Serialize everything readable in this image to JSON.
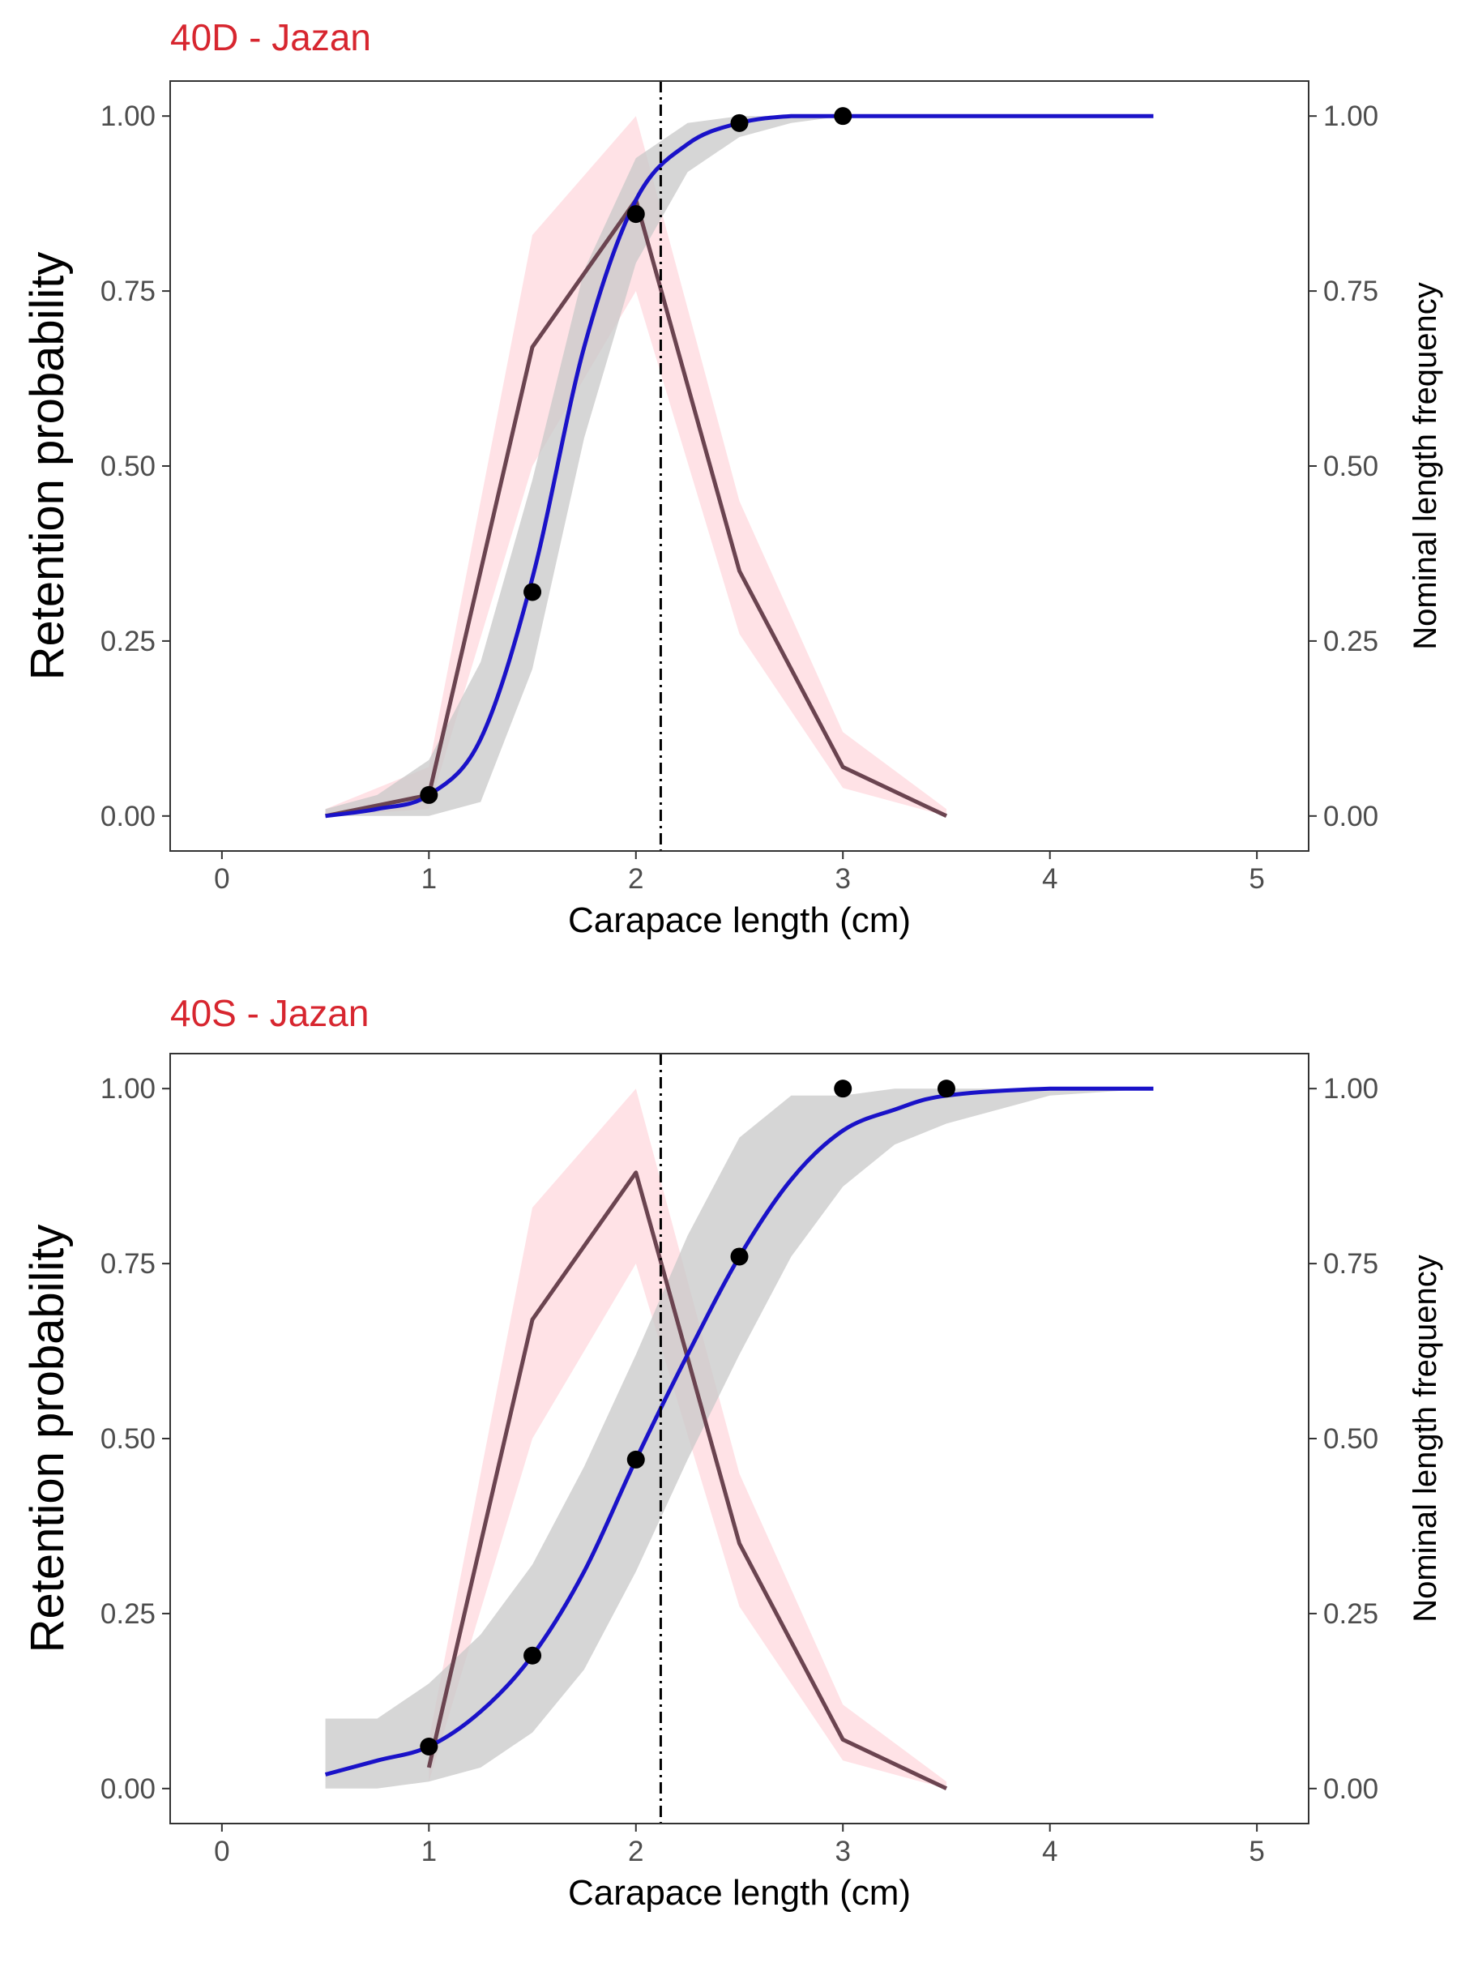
{
  "chart_data": [
    {
      "type": "line",
      "title": "40D - Jazan",
      "xlabel": "Carapace length (cm)",
      "ylabel": "Retention probability",
      "y2label": "Nominal length frequency",
      "xlim": [
        -0.25,
        5.25
      ],
      "ylim": [
        -0.05,
        1.05
      ],
      "xticks": [
        "0",
        "1",
        "2",
        "3",
        "4",
        "5"
      ],
      "yticks": [
        "0.00",
        "0.25",
        "0.50",
        "0.75",
        "1.00"
      ],
      "y2ticks": [
        "0.00",
        "0.25",
        "0.50",
        "0.75",
        "1.00"
      ],
      "grid": false,
      "reference_line_x": 2.12,
      "points": {
        "x": [
          1.0,
          1.5,
          2.0,
          2.5,
          3.0
        ],
        "y": [
          0.03,
          0.32,
          0.86,
          0.99,
          1.0
        ]
      },
      "retention_curve": {
        "x": [
          0.5,
          0.75,
          1.0,
          1.25,
          1.5,
          1.75,
          2.0,
          2.25,
          2.5,
          2.75,
          3.0,
          3.5,
          4.0,
          4.5
        ],
        "y": [
          0.0,
          0.01,
          0.03,
          0.11,
          0.34,
          0.67,
          0.88,
          0.96,
          0.99,
          1.0,
          1.0,
          1.0,
          1.0,
          1.0
        ],
        "lower": [
          0.0,
          0.0,
          0.0,
          0.02,
          0.21,
          0.54,
          0.79,
          0.92,
          0.97,
          0.99,
          1.0,
          1.0,
          1.0,
          1.0
        ],
        "upper": [
          0.01,
          0.03,
          0.08,
          0.22,
          0.48,
          0.78,
          0.94,
          0.99,
          1.0,
          1.0,
          1.0,
          1.0,
          1.0,
          1.0
        ]
      },
      "length_frequency": {
        "x": [
          0.5,
          1.0,
          1.5,
          2.0,
          2.5,
          3.0,
          3.5
        ],
        "y": [
          0.0,
          0.03,
          0.67,
          0.88,
          0.35,
          0.07,
          0.0
        ],
        "lower": [
          0.0,
          0.01,
          0.5,
          0.75,
          0.26,
          0.04,
          0.0
        ],
        "upper": [
          0.01,
          0.07,
          0.83,
          1.0,
          0.45,
          0.12,
          0.01
        ]
      },
      "colors": {
        "curve": "#1a12c8",
        "curve_ci": "#c8c8c8",
        "frequency": "#6b4450",
        "frequency_ci": "#ffd2d9",
        "points": "#000000",
        "title": "#d7262f"
      }
    },
    {
      "type": "line",
      "title": "40S - Jazan",
      "xlabel": "Carapace length (cm)",
      "ylabel": "Retention probability",
      "y2label": "Nominal length frequency",
      "xlim": [
        -0.25,
        5.25
      ],
      "ylim": [
        -0.05,
        1.05
      ],
      "xticks": [
        "0",
        "1",
        "2",
        "3",
        "4",
        "5"
      ],
      "yticks": [
        "0.00",
        "0.25",
        "0.50",
        "0.75",
        "1.00"
      ],
      "y2ticks": [
        "0.00",
        "0.25",
        "0.50",
        "0.75",
        "1.00"
      ],
      "grid": false,
      "reference_line_x": 2.12,
      "points": {
        "x": [
          1.0,
          1.5,
          2.0,
          2.5,
          3.0,
          3.5
        ],
        "y": [
          0.06,
          0.19,
          0.47,
          0.76,
          1.0,
          1.0
        ]
      },
      "retention_curve": {
        "x": [
          0.5,
          0.75,
          1.0,
          1.25,
          1.5,
          1.75,
          2.0,
          2.25,
          2.5,
          2.75,
          3.0,
          3.25,
          3.5,
          4.0,
          4.5
        ],
        "y": [
          0.02,
          0.04,
          0.06,
          0.11,
          0.19,
          0.31,
          0.47,
          0.62,
          0.76,
          0.87,
          0.94,
          0.97,
          0.99,
          1.0,
          1.0
        ],
        "lower": [
          0.0,
          0.0,
          0.01,
          0.03,
          0.08,
          0.17,
          0.31,
          0.47,
          0.62,
          0.76,
          0.86,
          0.92,
          0.95,
          0.99,
          1.0
        ],
        "upper": [
          0.1,
          0.1,
          0.15,
          0.22,
          0.32,
          0.46,
          0.62,
          0.79,
          0.93,
          0.99,
          0.99,
          1.0,
          1.0,
          1.0,
          1.0
        ]
      },
      "length_frequency": {
        "x": [
          1.0,
          1.5,
          2.0,
          2.5,
          3.0,
          3.5
        ],
        "y": [
          0.03,
          0.67,
          0.88,
          0.35,
          0.07,
          0.0
        ],
        "lower": [
          0.01,
          0.5,
          0.75,
          0.26,
          0.04,
          0.0
        ],
        "upper": [
          0.07,
          0.83,
          1.0,
          0.45,
          0.12,
          0.01
        ]
      },
      "colors": {
        "curve": "#1a12c8",
        "curve_ci": "#c8c8c8",
        "frequency": "#6b4450",
        "frequency_ci": "#ffd2d9",
        "points": "#000000",
        "title": "#d7262f"
      }
    }
  ]
}
